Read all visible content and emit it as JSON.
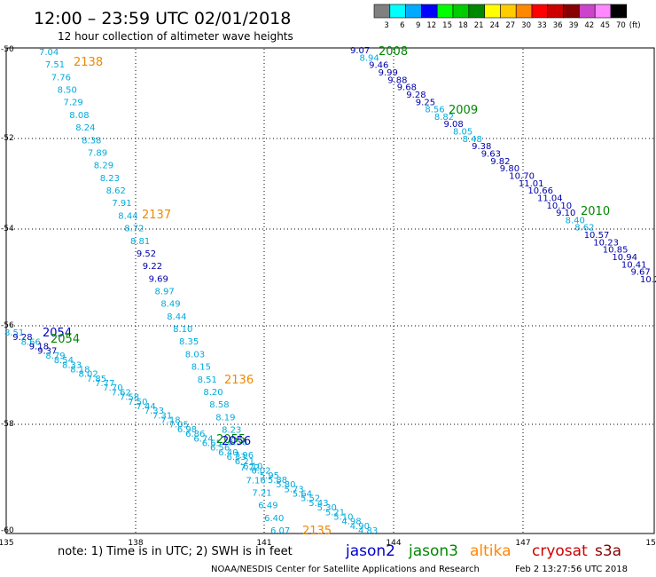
{
  "header": {
    "title": "12:00 – 23:59 UTC 02/01/2018",
    "subtitle": "12 hour collection of altimeter wave heights"
  },
  "legend": {
    "unit": "(ft)",
    "items": [
      {
        "label": "3",
        "color": "#808080"
      },
      {
        "label": "6",
        "color": "#00ffff"
      },
      {
        "label": "9",
        "color": "#00aaff"
      },
      {
        "label": "12",
        "color": "#0000ff"
      },
      {
        "label": "15",
        "color": "#00ff00"
      },
      {
        "label": "18",
        "color": "#00cc00"
      },
      {
        "label": "21",
        "color": "#008800"
      },
      {
        "label": "24",
        "color": "#ffff00"
      },
      {
        "label": "27",
        "color": "#ffcc00"
      },
      {
        "label": "30",
        "color": "#ff8800"
      },
      {
        "label": "33",
        "color": "#ff0000"
      },
      {
        "label": "36",
        "color": "#cc0000"
      },
      {
        "label": "39",
        "color": "#880000"
      },
      {
        "label": "42",
        "color": "#cc44cc"
      },
      {
        "label": "45",
        "color": "#ff88ff"
      },
      {
        "label": "70",
        "color": "#000000"
      }
    ]
  },
  "axes": {
    "x_ticks": [
      "135",
      "138",
      "141",
      "144",
      "147",
      "150"
    ],
    "y_ticks": [
      "-50",
      "-52",
      "-54",
      "-56",
      "-58",
      "-60"
    ]
  },
  "satellites": [
    {
      "name": "jason2",
      "color": "#0000cc"
    },
    {
      "name": "jason3",
      "color": "#008800"
    },
    {
      "name": "altika",
      "color": "#ff8800"
    },
    {
      "name": "cryosat",
      "color": "#cc0000"
    },
    {
      "name": "s3a",
      "color": "#880000"
    }
  ],
  "colors": {
    "light": "#00aadd",
    "dark": "#0000aa",
    "time_orange": "#ee8800",
    "time_green": "#008800",
    "time_blue": "#0000cc"
  },
  "tracks": {
    "A": {
      "times": [
        {
          "label": "2138",
          "style": "orange"
        },
        {
          "label": "2137",
          "style": "orange"
        },
        {
          "label": "2136",
          "style": "orange"
        },
        {
          "label": "2135",
          "style": "orange"
        }
      ],
      "values": [
        {
          "v": "7.04",
          "c": "light"
        },
        {
          "v": "7.51",
          "c": "light"
        },
        {
          "v": "7.76",
          "c": "light"
        },
        {
          "v": "8.50",
          "c": "light"
        },
        {
          "v": "7.29",
          "c": "light"
        },
        {
          "v": "8.08",
          "c": "light"
        },
        {
          "v": "8.24",
          "c": "light"
        },
        {
          "v": "8.38",
          "c": "light"
        },
        {
          "v": "7.89",
          "c": "light"
        },
        {
          "v": "8.29",
          "c": "light"
        },
        {
          "v": "8.23",
          "c": "light"
        },
        {
          "v": "8.62",
          "c": "light"
        },
        {
          "v": "7.91",
          "c": "light"
        },
        {
          "v": "8.44",
          "c": "light"
        },
        {
          "v": "8.72",
          "c": "light"
        },
        {
          "v": "8.81",
          "c": "light"
        },
        {
          "v": "9.52",
          "c": "dark"
        },
        {
          "v": "9.22",
          "c": "dark"
        },
        {
          "v": "9.69",
          "c": "dark"
        },
        {
          "v": "8.97",
          "c": "light"
        },
        {
          "v": "8.49",
          "c": "light"
        },
        {
          "v": "8.44",
          "c": "light"
        },
        {
          "v": "8.10",
          "c": "light"
        },
        {
          "v": "8.35",
          "c": "light"
        },
        {
          "v": "8.03",
          "c": "light"
        },
        {
          "v": "8.15",
          "c": "light"
        },
        {
          "v": "8.51",
          "c": "light"
        },
        {
          "v": "8.20",
          "c": "light"
        },
        {
          "v": "8.58",
          "c": "light"
        },
        {
          "v": "8.19",
          "c": "light"
        },
        {
          "v": "8.23",
          "c": "light"
        },
        {
          "v": "8.56",
          "c": "light"
        },
        {
          "v": "7.96",
          "c": "light"
        },
        {
          "v": "7.72",
          "c": "light"
        },
        {
          "v": "7.16",
          "c": "light"
        },
        {
          "v": "7.21",
          "c": "light"
        },
        {
          "v": "6.49",
          "c": "light"
        },
        {
          "v": "6.40",
          "c": "light"
        },
        {
          "v": "6.07",
          "c": "light"
        }
      ]
    },
    "B": {
      "times": [
        {
          "label": "2008",
          "style": "green"
        },
        {
          "label": "2009",
          "style": "green"
        },
        {
          "label": "2010",
          "style": "green"
        }
      ],
      "values": [
        {
          "v": "9.07",
          "c": "dark"
        },
        {
          "v": "8.94",
          "c": "light"
        },
        {
          "v": "9.46",
          "c": "dark"
        },
        {
          "v": "9.99",
          "c": "dark"
        },
        {
          "v": "9.88",
          "c": "dark"
        },
        {
          "v": "9.68",
          "c": "dark"
        },
        {
          "v": "9.28",
          "c": "dark"
        },
        {
          "v": "9.25",
          "c": "dark"
        },
        {
          "v": "8.56",
          "c": "light"
        },
        {
          "v": "8.82",
          "c": "light"
        },
        {
          "v": "9.08",
          "c": "dark"
        },
        {
          "v": "8.05",
          "c": "light"
        },
        {
          "v": "8.48",
          "c": "light"
        },
        {
          "v": "9.38",
          "c": "dark"
        },
        {
          "v": "9.63",
          "c": "dark"
        },
        {
          "v": "9.82",
          "c": "dark"
        },
        {
          "v": "9.80",
          "c": "dark"
        },
        {
          "v": "10.70",
          "c": "dark"
        },
        {
          "v": "11.01",
          "c": "dark"
        },
        {
          "v": "10.66",
          "c": "dark"
        },
        {
          "v": "11.04",
          "c": "dark"
        },
        {
          "v": "10.10",
          "c": "dark"
        },
        {
          "v": "9.10",
          "c": "dark"
        },
        {
          "v": "8.40",
          "c": "light"
        },
        {
          "v": "8.62",
          "c": "light"
        },
        {
          "v": "10.57",
          "c": "dark"
        },
        {
          "v": "10.23",
          "c": "dark"
        },
        {
          "v": "10.85",
          "c": "dark"
        },
        {
          "v": "10.94",
          "c": "dark"
        },
        {
          "v": "10.41",
          "c": "dark"
        },
        {
          "v": "9.67",
          "c": "dark"
        },
        {
          "v": "10.2",
          "c": "dark"
        }
      ]
    },
    "C": {
      "times": [
        {
          "label": "2054",
          "style": "blue"
        },
        {
          "label": "2054",
          "style": "green"
        },
        {
          "label": "2055",
          "style": "green"
        },
        {
          "label": "2056",
          "style": "blue"
        }
      ],
      "values": [
        {
          "v": "8.51",
          "c": "light"
        },
        {
          "v": "9.28",
          "c": "dark"
        },
        {
          "v": "8.66",
          "c": "light"
        },
        {
          "v": "9.18",
          "c": "dark"
        },
        {
          "v": "9.37",
          "c": "dark"
        },
        {
          "v": "8.79",
          "c": "light"
        },
        {
          "v": "8.54",
          "c": "light"
        },
        {
          "v": "8.33",
          "c": "light"
        },
        {
          "v": "8.18",
          "c": "light"
        },
        {
          "v": "8.02",
          "c": "light"
        },
        {
          "v": "7.85",
          "c": "light"
        },
        {
          "v": "7.77",
          "c": "light"
        },
        {
          "v": "7.70",
          "c": "light"
        },
        {
          "v": "7.62",
          "c": "light"
        },
        {
          "v": "7.58",
          "c": "light"
        },
        {
          "v": "7.50",
          "c": "light"
        },
        {
          "v": "7.44",
          "c": "light"
        },
        {
          "v": "7.33",
          "c": "light"
        },
        {
          "v": "7.31",
          "c": "light"
        },
        {
          "v": "7.18",
          "c": "light"
        },
        {
          "v": "7.05",
          "c": "light"
        },
        {
          "v": "6.98",
          "c": "light"
        },
        {
          "v": "6.86",
          "c": "light"
        },
        {
          "v": "6.74",
          "c": "light"
        },
        {
          "v": "6.65",
          "c": "light"
        },
        {
          "v": "6.56",
          "c": "light"
        },
        {
          "v": "6.40",
          "c": "light"
        },
        {
          "v": "6.33",
          "c": "light"
        },
        {
          "v": "6.21",
          "c": "light"
        },
        {
          "v": "6.10",
          "c": "light"
        },
        {
          "v": "6.02",
          "c": "light"
        },
        {
          "v": "5.95",
          "c": "light"
        },
        {
          "v": "5.88",
          "c": "light"
        },
        {
          "v": "5.80",
          "c": "light"
        },
        {
          "v": "5.73",
          "c": "light"
        },
        {
          "v": "5.64",
          "c": "light"
        },
        {
          "v": "5.52",
          "c": "light"
        },
        {
          "v": "5.43",
          "c": "light"
        },
        {
          "v": "5.30",
          "c": "light"
        },
        {
          "v": "5.21",
          "c": "light"
        },
        {
          "v": "5.10",
          "c": "light"
        },
        {
          "v": "4.98",
          "c": "light"
        },
        {
          "v": "4.90",
          "c": "light"
        },
        {
          "v": "4.83",
          "c": "light"
        }
      ]
    }
  },
  "footer": {
    "note": "note: 1) Time is in UTC; 2) SWH is in feet",
    "credit": "NOAA/NESDIS Center for Satellite Applications and Research",
    "timestamp": "Feb  2 13:27:56 UTC 2018"
  }
}
